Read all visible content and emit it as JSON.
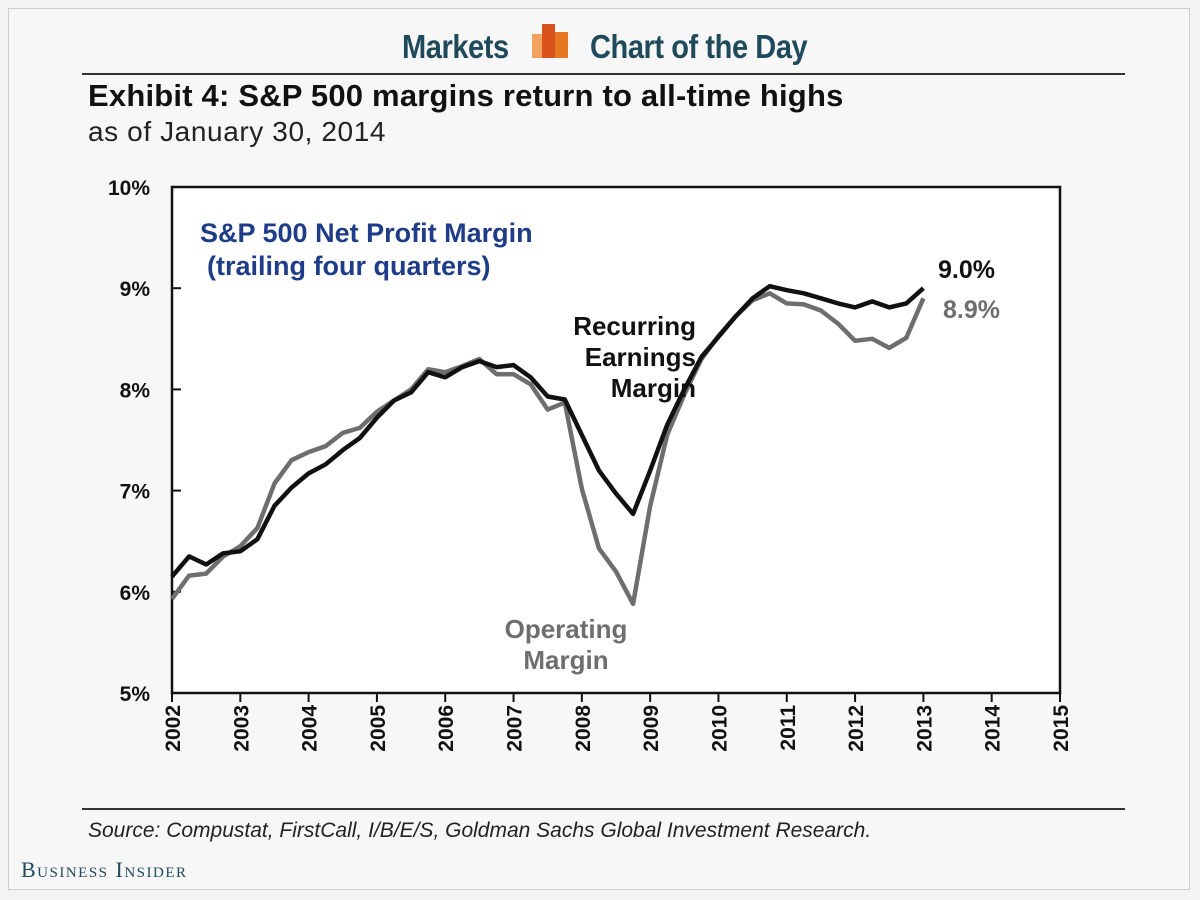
{
  "header": {
    "left": "Markets",
    "right": "Chart of the Day",
    "logo_icon": "bar-chart-logo-icon",
    "logo_colors": [
      "#e87722",
      "#d9531e",
      "#f0a35e"
    ]
  },
  "title": "Exhibit 4: S&P 500 margins return to all-time highs",
  "subtitle": "as of January 30, 2014",
  "source": "Source: Compustat, FirstCall, I/B/E/S, Goldman Sachs Global Investment Research.",
  "brand": "Business Insider",
  "chart_data": {
    "type": "line",
    "title": "S&P 500 Net Profit  Margin",
    "subtitle": "(trailing four quarters)",
    "title_color": "#1f3c88",
    "xlim": [
      2002,
      2015
    ],
    "ylim": [
      5,
      10
    ],
    "x_ticks": [
      "2002",
      "2003",
      "2004",
      "2005",
      "2006",
      "2007",
      "2008",
      "2009",
      "2010",
      "2011",
      "2012",
      "2013",
      "2014",
      "2015"
    ],
    "y_ticks": [
      "5%",
      "6%",
      "7%",
      "8%",
      "9%",
      "10%"
    ],
    "grid": false,
    "series": [
      {
        "name": "Recurring Earnings Margin",
        "label_lines": [
          "Recurring",
          "Earnings",
          "Margin"
        ],
        "color": "#111111",
        "end_label": "9.0%",
        "x": [
          2002,
          2002.25,
          2002.5,
          2002.75,
          2003,
          2003.25,
          2003.5,
          2003.75,
          2004,
          2004.25,
          2004.5,
          2004.75,
          2005,
          2005.25,
          2005.5,
          2005.75,
          2006,
          2006.25,
          2006.5,
          2006.75,
          2007,
          2007.25,
          2007.5,
          2007.75,
          2008,
          2008.25,
          2008.5,
          2008.75,
          2009,
          2009.25,
          2009.5,
          2009.75,
          2010,
          2010.25,
          2010.5,
          2010.75,
          2011,
          2011.25,
          2011.5,
          2011.75,
          2012,
          2012.25,
          2012.5,
          2012.75,
          2013
        ],
        "y": [
          6.15,
          6.35,
          6.27,
          6.38,
          6.4,
          6.52,
          6.85,
          7.03,
          7.17,
          7.26,
          7.4,
          7.52,
          7.72,
          7.89,
          7.97,
          8.17,
          8.12,
          8.22,
          8.28,
          8.22,
          8.24,
          8.12,
          7.93,
          7.9,
          7.55,
          7.2,
          6.97,
          6.77,
          7.2,
          7.65,
          8.0,
          8.32,
          8.52,
          8.72,
          8.9,
          9.02,
          8.98,
          8.95,
          8.9,
          8.85,
          8.81,
          8.87,
          8.81,
          8.85,
          9.0
        ]
      },
      {
        "name": "Operating Margin",
        "label_lines": [
          "Operating",
          "Margin"
        ],
        "color": "#6e6e6e",
        "end_label": "8.9%",
        "x": [
          2002,
          2002.25,
          2002.5,
          2002.75,
          2003,
          2003.25,
          2003.5,
          2003.75,
          2004,
          2004.25,
          2004.5,
          2004.75,
          2005,
          2005.25,
          2005.5,
          2005.75,
          2006,
          2006.25,
          2006.5,
          2006.75,
          2007,
          2007.25,
          2007.5,
          2007.75,
          2008,
          2008.25,
          2008.5,
          2008.75,
          2009,
          2009.25,
          2009.5,
          2009.75,
          2010,
          2010.25,
          2010.5,
          2010.75,
          2011,
          2011.25,
          2011.5,
          2011.75,
          2012,
          2012.25,
          2012.5,
          2012.75,
          2013
        ],
        "y": [
          5.93,
          6.16,
          6.18,
          6.35,
          6.45,
          6.63,
          7.07,
          7.3,
          7.38,
          7.44,
          7.57,
          7.62,
          7.78,
          7.89,
          8.0,
          8.2,
          8.17,
          8.23,
          8.3,
          8.15,
          8.15,
          8.05,
          7.8,
          7.87,
          7.02,
          6.43,
          6.2,
          5.88,
          6.85,
          7.55,
          7.95,
          8.3,
          8.53,
          8.72,
          8.88,
          8.95,
          8.85,
          8.84,
          8.78,
          8.65,
          8.48,
          8.5,
          8.41,
          8.51,
          8.9
        ]
      }
    ]
  }
}
